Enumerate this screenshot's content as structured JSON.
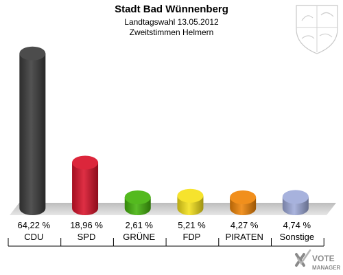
{
  "chart_data": {
    "type": "bar",
    "title": "Stadt Bad Wünnenberg",
    "subtitle_1": "Landtagswahl 13.05.2012",
    "subtitle_2": "Zweitstimmen Helmern",
    "ylim": [
      0,
      70
    ],
    "categories": [
      "CDU",
      "SPD",
      "GRÜNE",
      "FDP",
      "PIRATEN",
      "Sonstige"
    ],
    "values": [
      64.22,
      18.96,
      2.61,
      5.21,
      4.27,
      4.74
    ],
    "value_labels": [
      "64,22 %",
      "18,96 %",
      "2,61 %",
      "5,21 %",
      "4,27 %",
      "4,74 %"
    ],
    "colors": [
      "#3c3c3c",
      "#d9132a",
      "#45b40c",
      "#f5e11b",
      "#f08508",
      "#9fabda"
    ]
  },
  "logo": {
    "text_1": "VOTE",
    "text_2": "MANAGER"
  },
  "icons": [
    "coat-of-arms-icon",
    "vote-manager-logo"
  ]
}
